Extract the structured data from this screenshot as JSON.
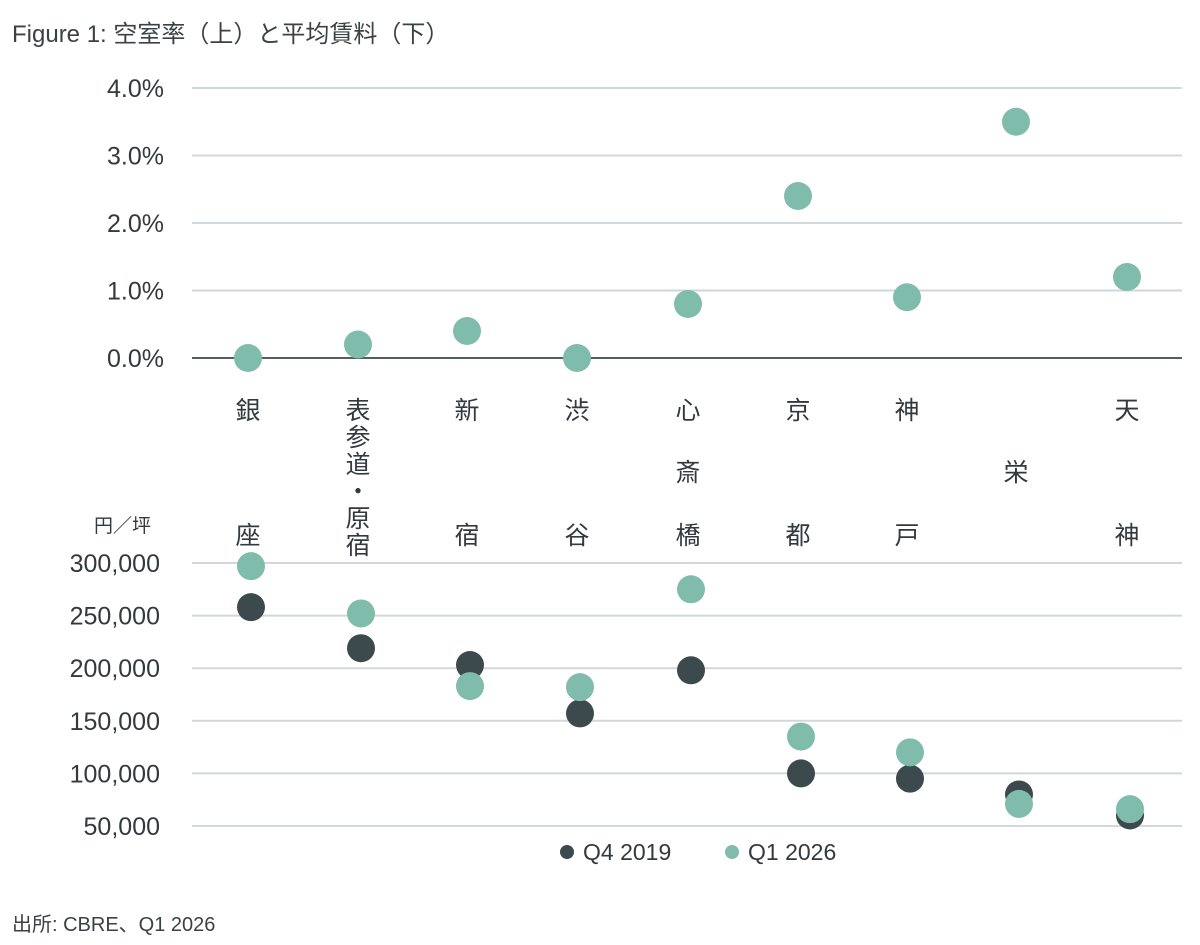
{
  "title": "Figure 1: 空室率（上）と平均賃料（下）",
  "source": "出所: CBRE、Q1 2026",
  "colors": {
    "q4_2019": "#3c4a4d",
    "q1_2026": "#80bcac",
    "grid": "#d2d7da",
    "axis": "#555d61"
  },
  "chart_data": [
    {
      "type": "scatter",
      "title": "",
      "ylabel": "",
      "ylim": [
        0,
        0.04
      ],
      "yticks": [
        "0.0%",
        "1.0%",
        "2.0%",
        "3.0%",
        "4.0%"
      ],
      "categories": [
        "銀座",
        "表参道・原宿",
        "新宿",
        "渋谷",
        "心斎橋",
        "京都",
        "神戸",
        "栄",
        "天神"
      ],
      "series": [
        {
          "name": "Q1 2026",
          "values": [
            0.0,
            0.002,
            0.004,
            0.0,
            0.008,
            0.024,
            0.009,
            0.035,
            0.012
          ]
        }
      ],
      "grid": true
    },
    {
      "type": "scatter",
      "title": "",
      "ylabel": "円／坪",
      "ylim": [
        50000,
        300000
      ],
      "yticks": [
        "50,000",
        "100,000",
        "150,000",
        "200,000",
        "250,000",
        "300,000"
      ],
      "categories": [
        "銀座",
        "表参道・原宿",
        "新宿",
        "渋谷",
        "心斎橋",
        "京都",
        "神戸",
        "栄",
        "天神"
      ],
      "series": [
        {
          "name": "Q4 2019",
          "values": [
            258000,
            219000,
            203000,
            157000,
            198000,
            100000,
            95000,
            80000,
            60000
          ]
        },
        {
          "name": "Q1 2026",
          "values": [
            297000,
            252000,
            183000,
            182000,
            275000,
            135000,
            120000,
            71000,
            66000
          ]
        }
      ],
      "grid": true,
      "legend": "bottom-center"
    }
  ]
}
